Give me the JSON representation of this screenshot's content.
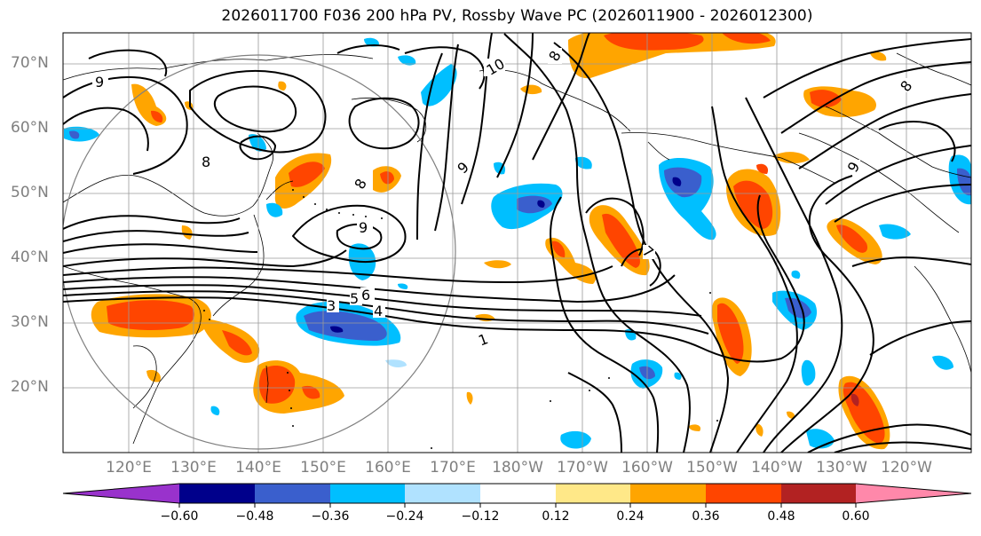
{
  "title": "2026011700 F036 200 hPa PV, Rossby Wave PC (2026011900 - 2026012300)",
  "lat_labels": [
    "70°N",
    "60°N",
    "50°N",
    "40°N",
    "30°N",
    "20°N"
  ],
  "lon_labels": [
    "120°E",
    "130°E",
    "140°E",
    "150°E",
    "160°E",
    "170°E",
    "180°W",
    "170°W",
    "160°W",
    "150°W",
    "140°W",
    "130°W",
    "120°W"
  ],
  "contour_labels": [
    "9",
    "8",
    "10",
    "8",
    "9",
    "9",
    "8",
    "8",
    "9",
    "6",
    "5",
    "4",
    "3",
    "1",
    "7"
  ],
  "colorbar": {
    "ticks": [
      "−0.60",
      "−0.48",
      "−0.36",
      "−0.24",
      "−0.12",
      "0.12",
      "0.24",
      "0.36",
      "0.48",
      "0.60"
    ],
    "colors": [
      "#9932cc",
      "#00008b",
      "#3a5fcd",
      "#00bfff",
      "#b0e2ff",
      "#ffffff",
      "#ffe888",
      "#ffa500",
      "#ff4500",
      "#b22222",
      "#ff88aa"
    ]
  }
}
